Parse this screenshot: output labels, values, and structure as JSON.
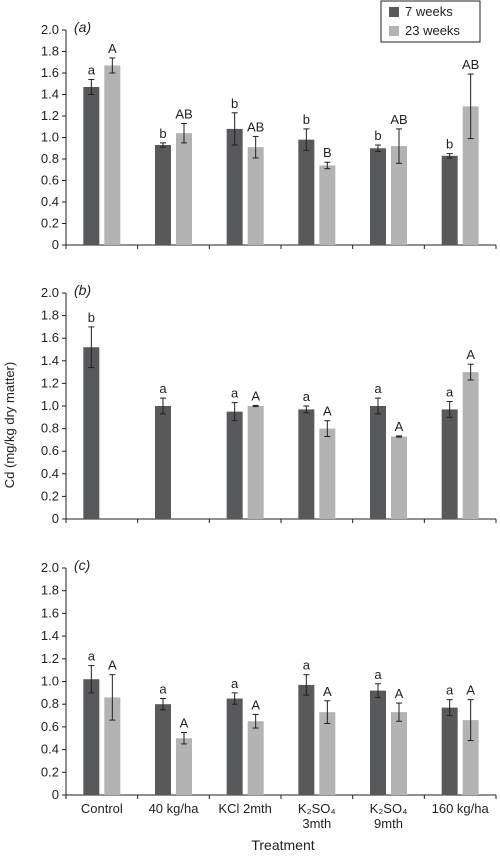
{
  "figure": {
    "ylabel": "Cd (mg/kg dry matter)",
    "xlabel": "Treatment",
    "categories": [
      [
        "Control"
      ],
      [
        "40 kg/ha"
      ],
      [
        "KCl 2mth"
      ],
      [
        "K₂SO₄",
        "3mth"
      ],
      [
        "K₂SO₄",
        "9mth"
      ],
      [
        "160 kg/ha"
      ]
    ],
    "legend": [
      {
        "label": "7 weeks",
        "color": "#58595b"
      },
      {
        "label": "23 weeks",
        "color": "#b3b3b3"
      }
    ],
    "legend_position": "top-right of panel (a)"
  },
  "chart_data": [
    {
      "type": "bar",
      "panel_label": "(a)",
      "ylim": [
        0,
        2.0
      ],
      "yticks": [
        "0",
        "0.2",
        "0.4",
        "0.6",
        "0.8",
        "1.0",
        "1.2",
        "1.4",
        "1.6",
        "1.8",
        "2.0"
      ],
      "grid": false,
      "series": [
        {
          "name": "7 weeks",
          "values": [
            1.47,
            0.93,
            1.08,
            0.98,
            0.9,
            0.83
          ],
          "errors": [
            0.07,
            0.02,
            0.15,
            0.1,
            0.03,
            0.02
          ],
          "letters": [
            "a",
            "b",
            "b",
            "b",
            "b",
            "b"
          ]
        },
        {
          "name": "23 weeks",
          "values": [
            1.67,
            1.04,
            0.91,
            0.74,
            0.92,
            1.29
          ],
          "errors": [
            0.07,
            0.09,
            0.1,
            0.03,
            0.16,
            0.3
          ],
          "letters": [
            "A",
            "AB",
            "AB",
            "B",
            "AB",
            "AB"
          ]
        }
      ]
    },
    {
      "type": "bar",
      "panel_label": "(b)",
      "ylim": [
        0,
        2.0
      ],
      "yticks": [
        "0",
        "0.2",
        "0.4",
        "0.6",
        "0.8",
        "1.0",
        "1.2",
        "1.4",
        "1.6",
        "1.8",
        "2.0"
      ],
      "grid": false,
      "series": [
        {
          "name": "7 weeks",
          "values": [
            1.52,
            1.0,
            0.95,
            0.97,
            1.0,
            0.97
          ],
          "errors": [
            0.18,
            0.07,
            0.08,
            0.03,
            0.07,
            0.07
          ],
          "letters": [
            "b",
            "a",
            "a",
            "a",
            "a",
            "a"
          ]
        },
        {
          "name": "23 weeks",
          "values": [
            null,
            null,
            1.0,
            0.8,
            0.73,
            1.3
          ],
          "errors": [
            null,
            null,
            0.005,
            0.07,
            0.005,
            0.07
          ],
          "letters": [
            "",
            "",
            "A",
            "A",
            "A",
            "A"
          ]
        }
      ]
    },
    {
      "type": "bar",
      "panel_label": "(c)",
      "ylim": [
        0,
        2.0
      ],
      "yticks": [
        "0",
        "0.2",
        "0.4",
        "0.6",
        "0.8",
        "1.0",
        "1.2",
        "1.4",
        "1.6",
        "1.8",
        "2.0"
      ],
      "grid": false,
      "series": [
        {
          "name": "7 weeks",
          "values": [
            1.02,
            0.8,
            0.85,
            0.97,
            0.92,
            0.77
          ],
          "errors": [
            0.12,
            0.05,
            0.05,
            0.09,
            0.06,
            0.07
          ],
          "letters": [
            "a",
            "a",
            "a",
            "a",
            "a",
            "a"
          ]
        },
        {
          "name": "23 weeks",
          "values": [
            0.86,
            0.5,
            0.65,
            0.73,
            0.73,
            0.66
          ],
          "errors": [
            0.2,
            0.05,
            0.06,
            0.1,
            0.08,
            0.18
          ],
          "letters": [
            "A",
            "A",
            "A",
            "A",
            "A",
            "A"
          ]
        }
      ]
    }
  ]
}
